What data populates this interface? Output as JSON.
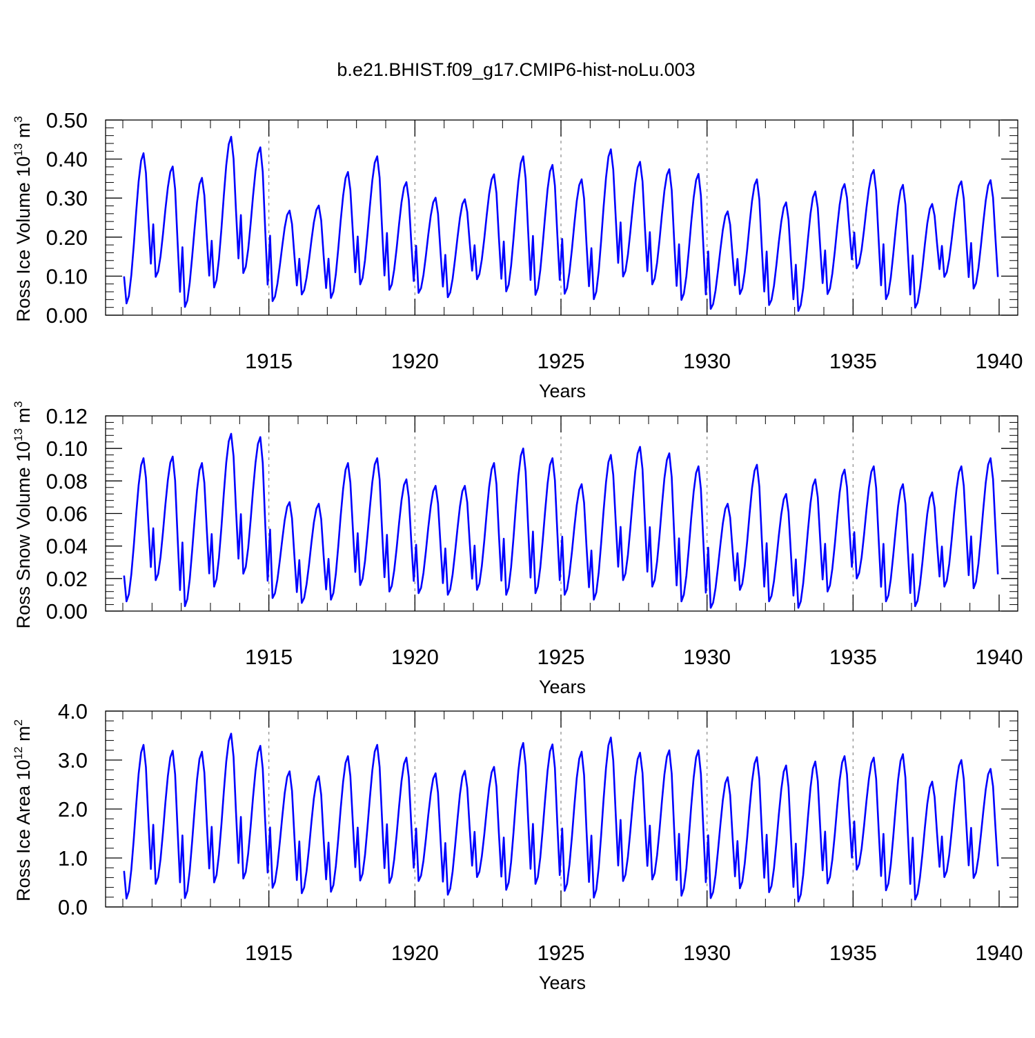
{
  "title": "b.e21.BHIST.f09_g17.CMIP6-hist-noLu.003",
  "colors": {
    "series": "#0000ff",
    "axis": "#000000",
    "gridline": "#888888"
  },
  "chart_data": [
    {
      "type": "line",
      "name": "ross-ice-volume",
      "ylabel_main": "Ross Ice Volume 10",
      "ylabel_exp": "13",
      "ylabel_unit": " m",
      "ylabel_unit_exp": "3",
      "xlabel": "Years",
      "xlim": [
        1910.0,
        1940.0
      ],
      "ylim": [
        0.0,
        0.5
      ],
      "yticks": [
        0.0,
        0.1,
        0.2,
        0.3,
        0.4,
        0.5
      ],
      "ytick_labels": [
        "0.00",
        "0.10",
        "0.20",
        "0.30",
        "0.40",
        "0.50"
      ],
      "xticks": [
        1915,
        1920,
        1925,
        1930,
        1935,
        1940
      ],
      "xtick_labels": [
        "1915",
        "1920",
        "1925",
        "1930",
        "1935",
        "1940"
      ],
      "grid": "dashed vertical lines at x ticks",
      "series": [
        {
          "name": "Ross Ice Volume",
          "start_year": 1910.0,
          "step_years": 0.083333,
          "peaks": [
            0.415,
            0.381,
            0.352,
            0.457,
            0.43,
            0.268,
            0.281,
            0.367,
            0.407,
            0.341,
            0.301,
            0.297,
            0.361,
            0.407,
            0.385,
            0.348,
            0.425,
            0.393,
            0.374,
            0.362,
            0.266,
            0.348,
            0.289,
            0.317,
            0.336,
            0.372,
            0.334,
            0.285,
            0.343,
            0.346
          ],
          "troughs": [
            0.03,
            0.098,
            0.021,
            0.071,
            0.108,
            0.036,
            0.053,
            0.044,
            0.079,
            0.065,
            0.057,
            0.046,
            0.092,
            0.061,
            0.052,
            0.055,
            0.041,
            0.099,
            0.079,
            0.039,
            0.016,
            0.054,
            0.026,
            0.011,
            0.054,
            0.12,
            0.041,
            0.019,
            0.098,
            0.068
          ]
        }
      ]
    },
    {
      "type": "line",
      "name": "ross-snow-volume",
      "ylabel_main": "Ross Snow Volume 10",
      "ylabel_exp": "13",
      "ylabel_unit": " m",
      "ylabel_unit_exp": "3",
      "xlabel": "Years",
      "xlim": [
        1910.0,
        1940.0
      ],
      "ylim": [
        0.0,
        0.12
      ],
      "yticks": [
        0.0,
        0.02,
        0.04,
        0.06,
        0.08,
        0.1,
        0.12
      ],
      "ytick_labels": [
        "0.00",
        "0.02",
        "0.04",
        "0.06",
        "0.08",
        "0.10",
        "0.12"
      ],
      "xticks": [
        1915,
        1920,
        1925,
        1930,
        1935,
        1940
      ],
      "xtick_labels": [
        "1915",
        "1920",
        "1925",
        "1930",
        "1935",
        "1940"
      ],
      "grid": "dashed vertical lines at x ticks",
      "series": [
        {
          "name": "Ross Snow Volume",
          "start_year": 1910.0,
          "step_years": 0.083333,
          "peaks": [
            0.094,
            0.095,
            0.091,
            0.109,
            0.107,
            0.067,
            0.066,
            0.091,
            0.094,
            0.081,
            0.077,
            0.077,
            0.091,
            0.1,
            0.094,
            0.078,
            0.096,
            0.101,
            0.097,
            0.089,
            0.066,
            0.09,
            0.072,
            0.081,
            0.087,
            0.089,
            0.078,
            0.073,
            0.089,
            0.094
          ],
          "troughs": [
            0.006,
            0.019,
            0.003,
            0.015,
            0.023,
            0.008,
            0.005,
            0.007,
            0.016,
            0.012,
            0.011,
            0.01,
            0.013,
            0.01,
            0.011,
            0.01,
            0.007,
            0.019,
            0.015,
            0.006,
            0.002,
            0.013,
            0.006,
            0.002,
            0.012,
            0.02,
            0.006,
            0.003,
            0.015,
            0.014
          ]
        }
      ]
    },
    {
      "type": "line",
      "name": "ross-ice-area",
      "ylabel_main": "Ross Ice Area 10",
      "ylabel_exp": "12",
      "ylabel_unit": " m",
      "ylabel_unit_exp": "2",
      "xlabel": "Years",
      "xlim": [
        1910.0,
        1940.0
      ],
      "ylim": [
        0.0,
        4.0
      ],
      "yticks": [
        0.0,
        1.0,
        2.0,
        3.0,
        4.0
      ],
      "ytick_labels": [
        "0.0",
        "1.0",
        "2.0",
        "3.0",
        "4.0"
      ],
      "xticks": [
        1915,
        1920,
        1925,
        1930,
        1935,
        1940
      ],
      "xtick_labels": [
        "1915",
        "1920",
        "1925",
        "1930",
        "1935",
        "1940"
      ],
      "grid": "dashed vertical lines at x ticks",
      "series": [
        {
          "name": "Ross Ice Area",
          "start_year": 1910.0,
          "step_years": 0.083333,
          "peaks": [
            3.31,
            3.19,
            3.17,
            3.54,
            3.29,
            2.77,
            2.67,
            3.08,
            3.31,
            3.05,
            2.73,
            2.78,
            2.86,
            3.35,
            3.32,
            3.17,
            3.46,
            3.15,
            3.2,
            3.2,
            2.65,
            3.06,
            2.89,
            2.97,
            3.08,
            3.05,
            3.12,
            2.56,
            3.0,
            2.82
          ],
          "troughs": [
            0.17,
            0.47,
            0.18,
            0.5,
            0.58,
            0.39,
            0.28,
            0.31,
            0.54,
            0.49,
            0.53,
            0.25,
            0.61,
            0.35,
            0.47,
            0.33,
            0.19,
            0.53,
            0.56,
            0.23,
            0.18,
            0.38,
            0.3,
            0.11,
            0.48,
            0.76,
            0.34,
            0.15,
            0.61,
            0.59
          ]
        }
      ]
    }
  ]
}
